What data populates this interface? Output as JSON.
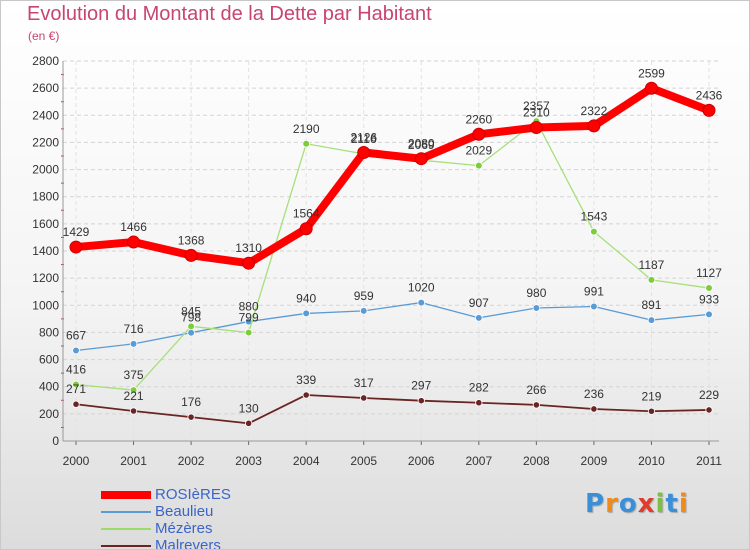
{
  "header": {
    "title": "Evolution du Montant de la Dette par Habitant",
    "unit": "(en €)"
  },
  "chart_data": {
    "type": "line",
    "title": "Evolution du Montant de la Dette par Habitant",
    "subtitle": "(en €)",
    "xlabel": "",
    "ylabel": "",
    "x": [
      "2000",
      "2001",
      "2002",
      "2003",
      "2004",
      "2005",
      "2006",
      "2007",
      "2008",
      "2009",
      "2010",
      "2011"
    ],
    "ylim": [
      0,
      2800
    ],
    "yticks": [
      0,
      200,
      400,
      600,
      800,
      1000,
      1200,
      1400,
      1600,
      1800,
      2000,
      2200,
      2400,
      2600,
      2800
    ],
    "grid": true,
    "legend_position": "bottom-left",
    "series": [
      {
        "name": "ROSIèRES",
        "color": "#ff0000",
        "values": [
          1429,
          1466,
          1368,
          1310,
          1564,
          2126,
          2080,
          2260,
          2310,
          2322,
          2599,
          2436
        ]
      },
      {
        "name": "Beaulieu",
        "color": "#5b9bd5",
        "values": [
          667,
          716,
          798,
          880,
          940,
          959,
          1020,
          907,
          980,
          991,
          891,
          933
        ]
      },
      {
        "name": "Mézères",
        "color": "#99dd66",
        "values": [
          416,
          375,
          845,
          799,
          2190,
          2116,
          2069,
          2029,
          2357,
          1543,
          1187,
          1127
        ]
      },
      {
        "name": "Malrevers",
        "color": "#6b2424",
        "values": [
          271,
          221,
          176,
          130,
          339,
          317,
          297,
          282,
          266,
          236,
          219,
          229
        ]
      }
    ]
  },
  "logo": {
    "letters": [
      "P",
      "r",
      "o",
      "x",
      "i",
      "t",
      "i"
    ],
    "colors": [
      "#3a8fd8",
      "#f08a1c",
      "#3a8fd8",
      "#e03c2c",
      "#7bc043",
      "#3a8fd8",
      "#f08a1c"
    ]
  }
}
